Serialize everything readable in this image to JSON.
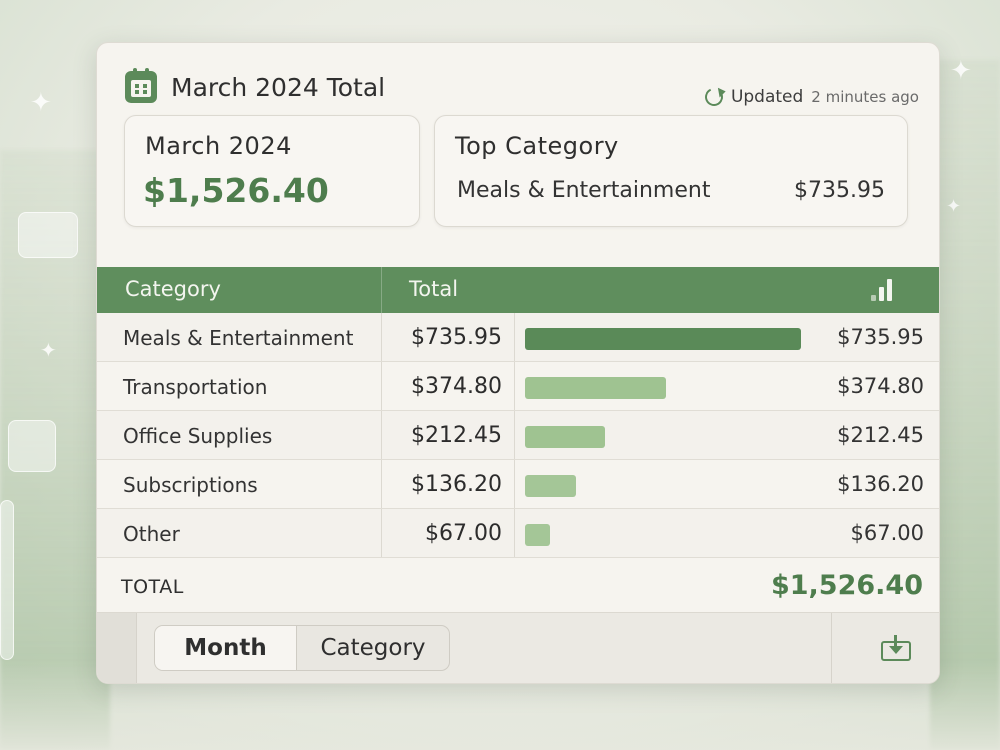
{
  "header": {
    "title": "March 2024 Total",
    "title_icon": "calendar-icon",
    "updated_label": "Updated",
    "updated_time": "2 minutes ago"
  },
  "summary": {
    "month_label": "March 2024",
    "month_total": "$1,526.40",
    "top_label": "Top Category",
    "top_category": "Meals & Entertainment",
    "top_amount": "$735.95"
  },
  "table": {
    "col_category": "Category",
    "col_total": "Total",
    "chart_icon": "bar-chart-icon",
    "bar_max": 735.95,
    "rows": [
      {
        "category": "Meals & Entertainment",
        "total": "$735.95",
        "amount": "$735.95",
        "value": 735.95,
        "color": "#5a8a58"
      },
      {
        "category": "Transportation",
        "total": "$374.80",
        "amount": "$374.80",
        "value": 374.8,
        "color": "#9fc391"
      },
      {
        "category": "Office Supplies",
        "total": "$212.45",
        "amount": "$212.45",
        "value": 212.45,
        "color": "#9fc391"
      },
      {
        "category": "Subscriptions",
        "total": "$136.20",
        "amount": "$136.20",
        "value": 136.2,
        "color": "#a4c697"
      },
      {
        "category": "Other",
        "total": "$67.00",
        "amount": "$67.00",
        "value": 67.0,
        "color": "#a4c697"
      }
    ],
    "total_label": "TOTAL",
    "total_value": "$1,526.40"
  },
  "footer": {
    "tab_month": "Month",
    "tab_category": "Category",
    "selected_tab": "Month",
    "export_icon": "export-icon"
  },
  "colors": {
    "accent": "#5f8e5d",
    "accent_text": "#4e7d4d"
  }
}
